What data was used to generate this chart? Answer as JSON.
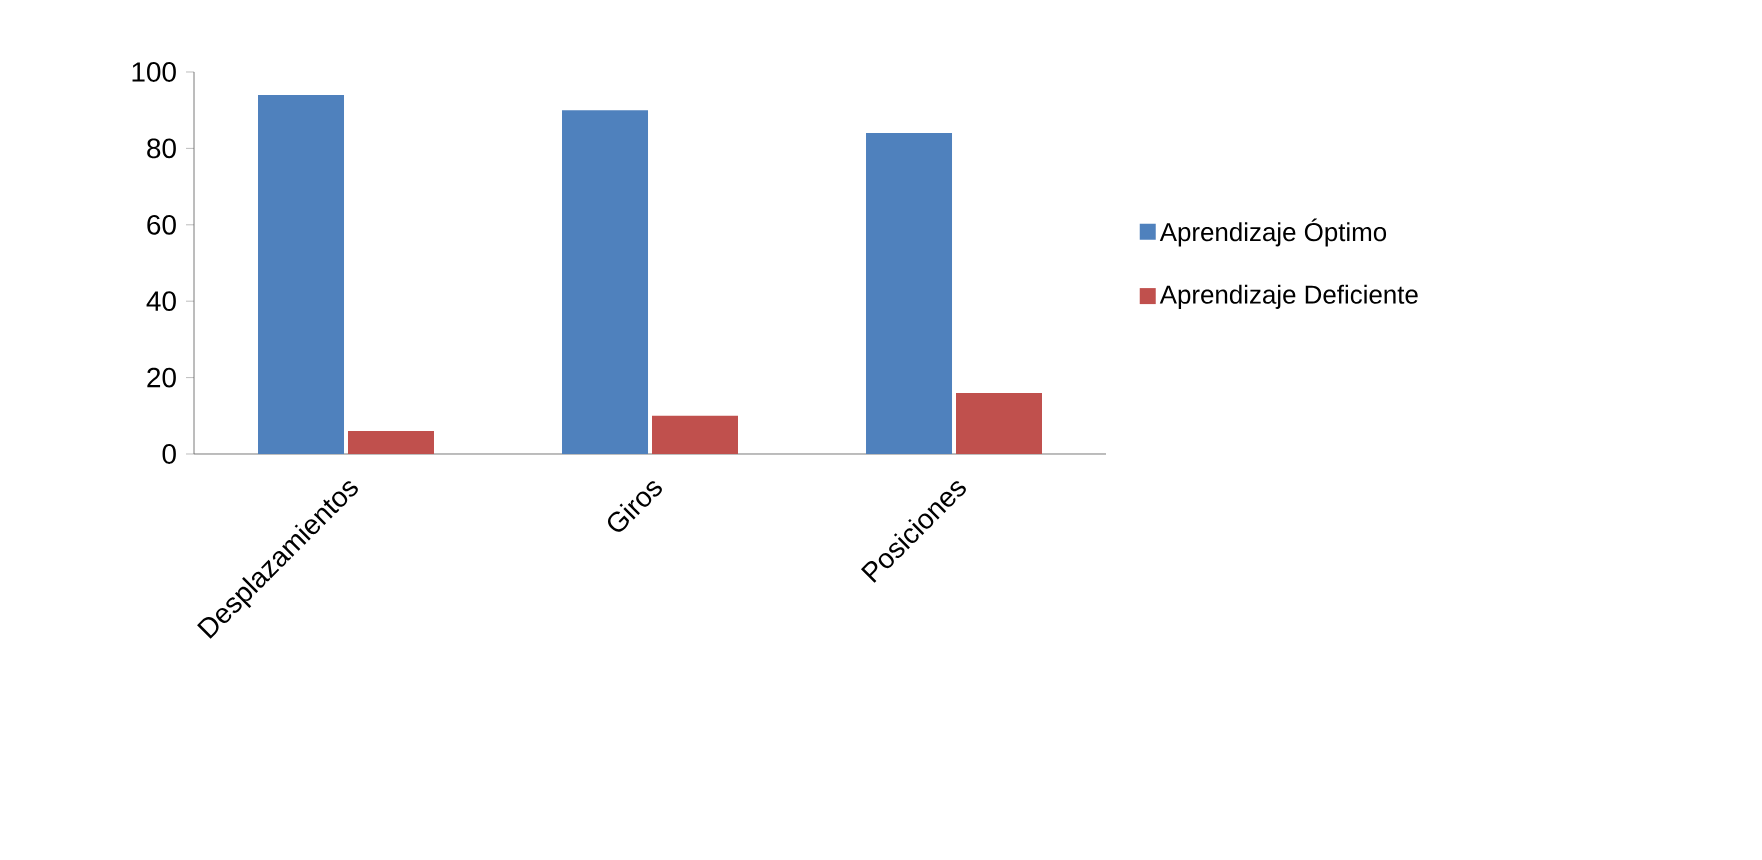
{
  "chart_data": {
    "type": "bar",
    "categories": [
      "Desplazamientos",
      "Giros",
      "Posiciones"
    ],
    "series": [
      {
        "name": "Aprendizaje Óptimo",
        "color": "#4f81bd",
        "values": [
          94,
          90,
          84
        ]
      },
      {
        "name": "Aprendizaje Deficiente",
        "color": "#c0504d",
        "values": [
          6,
          10,
          16
        ]
      }
    ],
    "ylim": [
      0,
      100
    ],
    "yticks": [
      0,
      20,
      40,
      60,
      80,
      100
    ],
    "legend": "right",
    "grid": false
  }
}
